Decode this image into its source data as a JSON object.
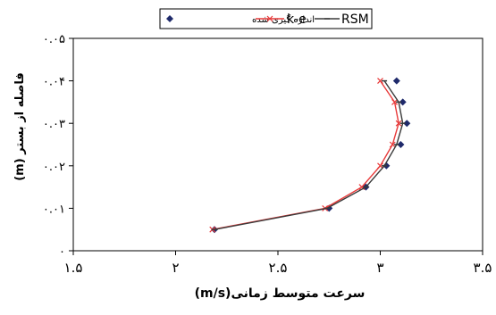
{
  "chart_data": {
    "type": "line",
    "xlabel": "سرعت متوسط زمانی(m/s)",
    "ylabel": "فاصله از بستر (m)",
    "xlim": [
      1.5,
      3.5
    ],
    "ylim": [
      0,
      0.05
    ],
    "x_ticks": [
      1.5,
      2,
      2.5,
      3,
      3.5
    ],
    "x_tick_labels": [
      "۱.۵",
      "۲",
      "۲.۵",
      "۳",
      "۳.۵"
    ],
    "y_ticks": [
      0,
      0.01,
      0.02,
      0.03,
      0.04,
      0.05
    ],
    "y_tick_labels": [
      "۰",
      "۰.۰۱",
      "۰.۰۲",
      "۰.۰۳",
      "۰.۰۴",
      "۰.۰۵"
    ],
    "grid": false,
    "legend_position": "top",
    "series": [
      {
        "name": "اندازه گیری شده",
        "kind": "marker",
        "marker": "diamond",
        "color": "#1f2a6b",
        "x": [
          2.19,
          2.75,
          2.93,
          3.03,
          3.1,
          3.13,
          3.11,
          3.08
        ],
        "y": [
          0.005,
          0.01,
          0.015,
          0.02,
          0.025,
          0.03,
          0.035,
          0.04
        ]
      },
      {
        "name": "k-e",
        "kind": "line",
        "marker": "x",
        "color": "#e83a3a",
        "x": [
          2.18,
          2.73,
          2.91,
          3.0,
          3.06,
          3.09,
          3.07,
          3.0
        ],
        "y": [
          0.005,
          0.01,
          0.015,
          0.02,
          0.025,
          0.03,
          0.035,
          0.04
        ]
      },
      {
        "name": "RSM",
        "kind": "line",
        "marker": "dash",
        "color": "#3a3a3a",
        "x": [
          2.19,
          2.74,
          2.93,
          3.02,
          3.08,
          3.11,
          3.09,
          3.02
        ],
        "y": [
          0.005,
          0.01,
          0.015,
          0.02,
          0.025,
          0.03,
          0.035,
          0.04
        ]
      }
    ]
  }
}
